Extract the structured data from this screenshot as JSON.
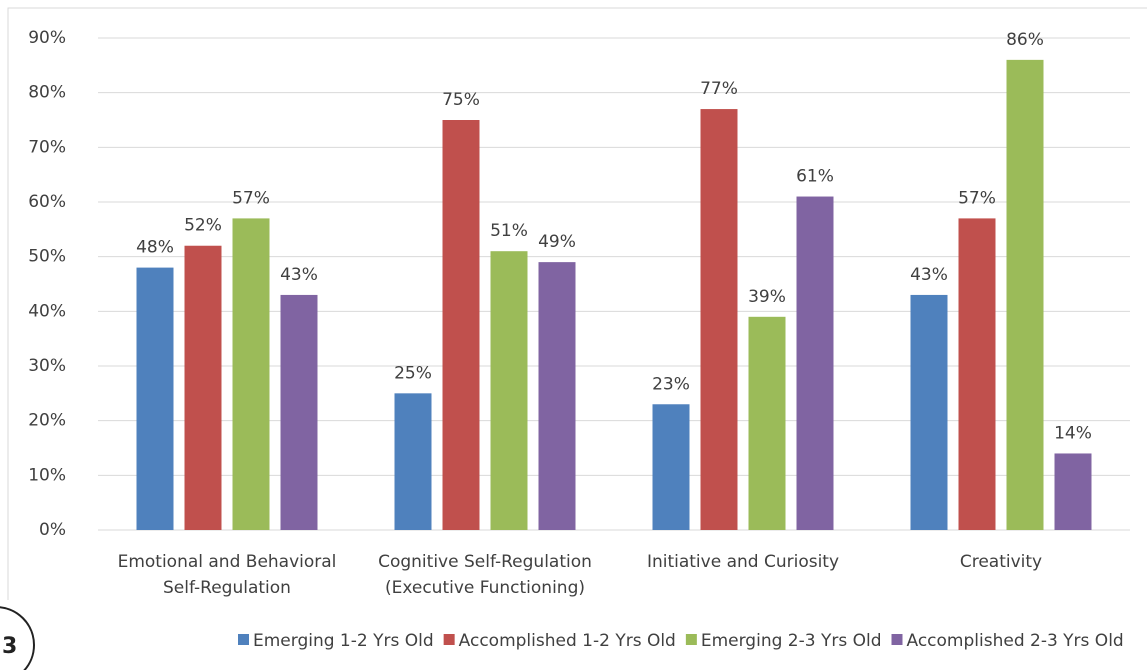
{
  "page_number": "3",
  "chart_data": {
    "type": "bar",
    "categories": [
      [
        "Emotional and Behavioral",
        "Self-Regulation"
      ],
      [
        "Cognitive Self-Regulation",
        "(Executive Functioning)"
      ],
      [
        "Initiative and Curiosity"
      ],
      [
        "Creativity"
      ]
    ],
    "series": [
      {
        "name": "Emerging 1-2 Yrs Old",
        "color": "#4f81bd",
        "values": [
          48,
          25,
          23,
          43
        ],
        "value_labels": [
          "48%",
          "25%",
          "23%",
          "43%"
        ]
      },
      {
        "name": "Accomplished 1-2 Yrs Old",
        "color": "#c0504d",
        "values": [
          52,
          75,
          77,
          57
        ],
        "value_labels": [
          "52%",
          "75%",
          "77%",
          "57%"
        ]
      },
      {
        "name": "Emerging 2-3 Yrs Old",
        "color": "#9bbb59",
        "values": [
          57,
          51,
          39,
          86
        ],
        "value_labels": [
          "57%",
          "51%",
          "39%",
          "86%"
        ]
      },
      {
        "name": "Accomplished 2-3 Yrs Old",
        "color": "#8064a2",
        "values": [
          43,
          49,
          61,
          14
        ],
        "value_labels": [
          "43%",
          "49%",
          "61%",
          "14%"
        ]
      }
    ],
    "ylim": [
      0,
      90
    ],
    "yticks": [
      {
        "value": 0,
        "label": "0%"
      },
      {
        "value": 10,
        "label": "10%"
      },
      {
        "value": 20,
        "label": "20%"
      },
      {
        "value": 30,
        "label": "30%"
      },
      {
        "value": 40,
        "label": "40%"
      },
      {
        "value": 50,
        "label": "50%"
      },
      {
        "value": 60,
        "label": "60%"
      },
      {
        "value": 70,
        "label": "70%"
      },
      {
        "value": 80,
        "label": "80%"
      },
      {
        "value": 90,
        "label": "90%"
      }
    ],
    "grid": true,
    "legend": "bottom"
  }
}
